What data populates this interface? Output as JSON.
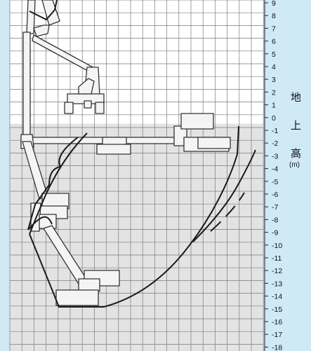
{
  "colors": {
    "background": "#cfe9f5",
    "grid_upper_fill": "#ffffff",
    "grid_lower_fill": "#e3e3e3",
    "grid_line": "#7a7a7a",
    "envelope_line": "#1a1a1a",
    "machine_fill": "#f4f4f4",
    "machine_stroke": "#333333"
  },
  "scale": {
    "ticks": [
      9,
      8,
      7,
      6,
      5,
      4,
      3,
      2,
      1,
      0,
      -1,
      -2,
      -3,
      -4,
      -5,
      -6,
      -7,
      -8,
      -9,
      -10,
      -11,
      -12,
      -13,
      -14,
      -15,
      -16,
      -17,
      -18
    ],
    "ground_level": 0
  },
  "side_label": {
    "chars": [
      "地",
      "上",
      "高"
    ],
    "unit": "(m)"
  },
  "machine": {
    "icon": "aerial-work-platform-icon",
    "poses": [
      "stowed",
      "horizontal-reach",
      "deep-below-ground-reach"
    ]
  }
}
